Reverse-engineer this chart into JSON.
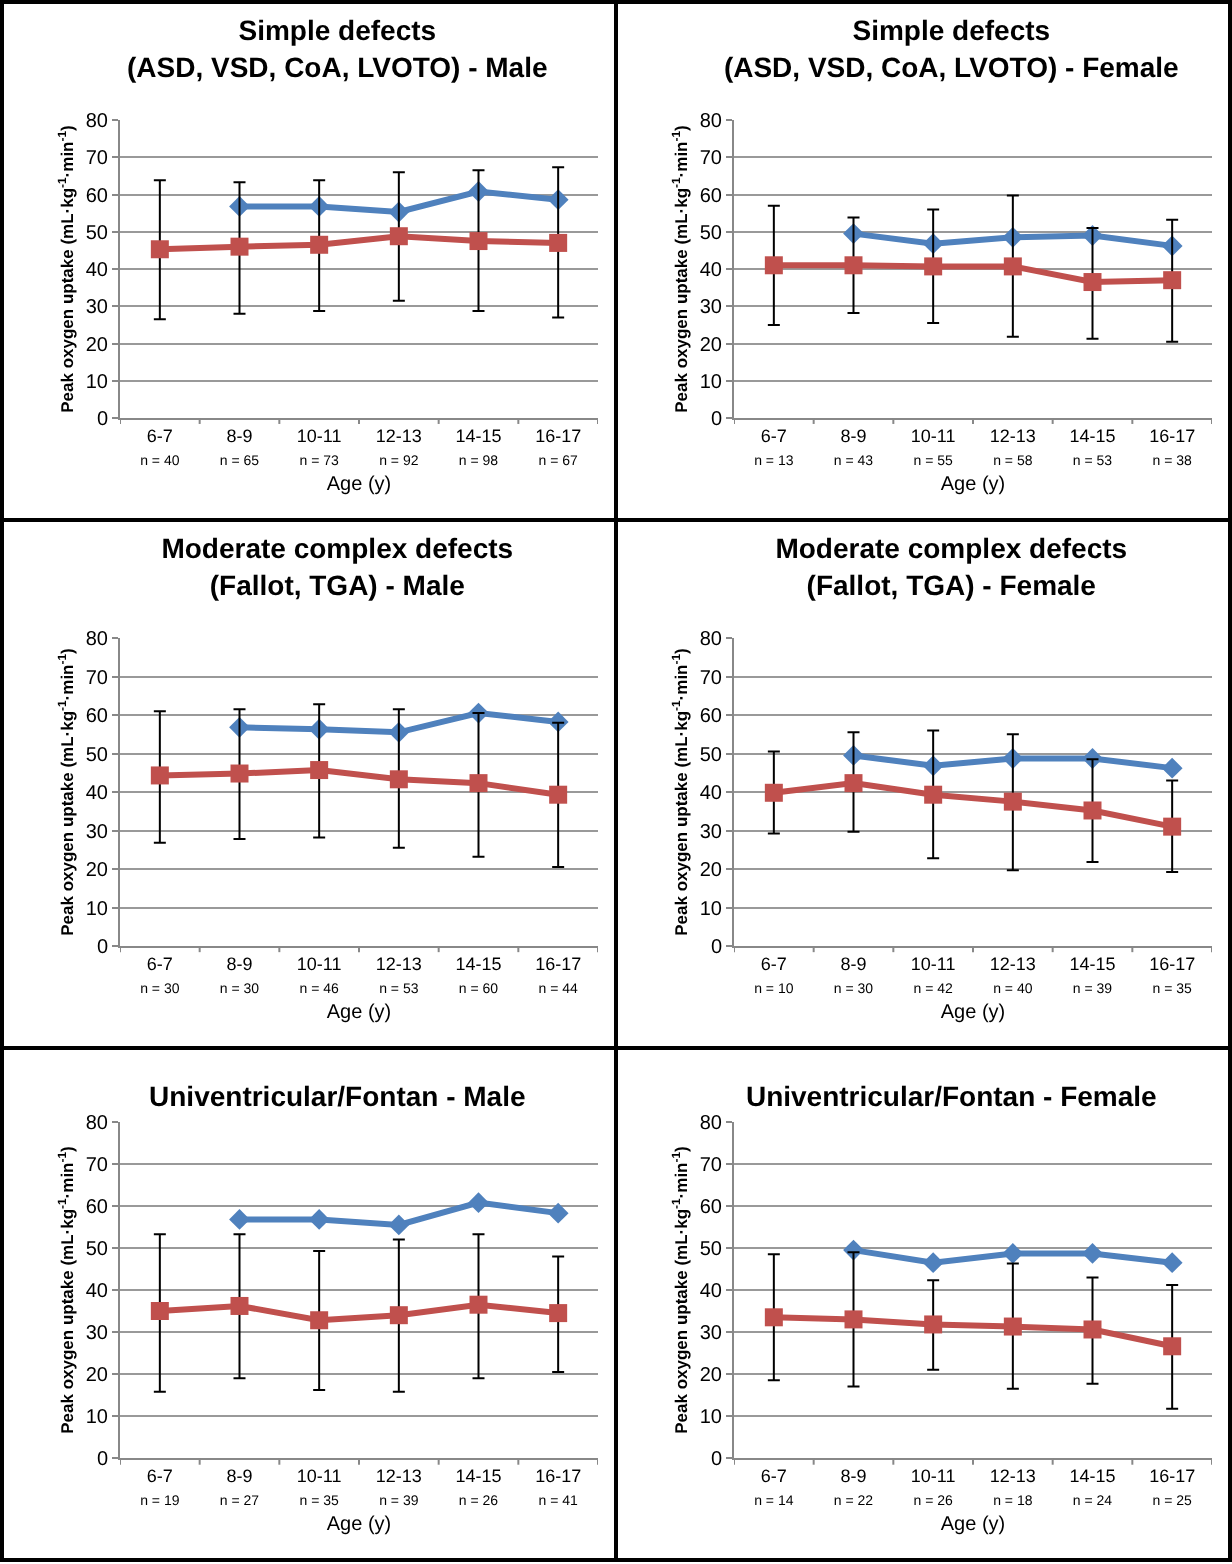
{
  "chart_data": [
    {
      "type": "line",
      "title": "Simple defects\n(ASD, VSD, CoA, LVOTO) - Male",
      "xlabel": "Age (y)",
      "ylabel": "Peak oxygen uptake (mL·kg$^{-1}$·min$^{-1}$)",
      "categories": [
        "6-7\nn = 40",
        "8-9\nn = 65",
        "10-11\nn = 73",
        "12-13\nn = 92",
        "14-15\nn = 98",
        "16-17\nn = 67"
      ],
      "ylim": [
        0,
        80
      ],
      "yticks": [
        0,
        10,
        20,
        30,
        40,
        50,
        60,
        70,
        80
      ],
      "grid": "y",
      "series": [
        {
          "color": "#4f81bd",
          "marker": "diamond",
          "values": [
            null,
            56.8,
            56.8,
            55.3,
            60.8,
            58.6
          ]
        },
        {
          "color": "#c0504d",
          "marker": "square",
          "values": [
            45.3,
            46,
            46.5,
            48.8,
            47.5,
            47
          ],
          "errors": [
            [
              26.5,
              63.8
            ],
            [
              28,
              63.3
            ],
            [
              28.7,
              63.8
            ],
            [
              31.5,
              66
            ],
            [
              28.7,
              66.5
            ],
            [
              27,
              67.3
            ]
          ]
        }
      ]
    },
    {
      "type": "line",
      "title": "Simple defects\n(ASD, VSD, CoA, LVOTO) - Female",
      "xlabel": "Age (y)",
      "ylabel": "Peak oxygen uptake (mL·kg$^{-1}$·min$^{-1}$)",
      "categories": [
        "6-7\nn = 13",
        "8-9\nn = 43",
        "10-11\nn = 55",
        "12-13\nn = 58",
        "14-15\nn = 53",
        "16-17\nn = 38"
      ],
      "ylim": [
        0,
        80
      ],
      "yticks": [
        0,
        10,
        20,
        30,
        40,
        50,
        60,
        70,
        80
      ],
      "grid": "y",
      "series": [
        {
          "color": "#4f81bd",
          "marker": "diamond",
          "values": [
            null,
            49.5,
            46.8,
            48.5,
            49,
            46.2
          ]
        },
        {
          "color": "#c0504d",
          "marker": "square",
          "values": [
            41,
            41,
            40.7,
            40.7,
            36.5,
            37
          ],
          "errors": [
            [
              25,
              57
            ],
            [
              28.2,
              53.8
            ],
            [
              25.5,
              56
            ],
            [
              21.8,
              59.7
            ],
            [
              21.3,
              51
            ],
            [
              20.5,
              53.2
            ]
          ]
        }
      ]
    },
    {
      "type": "line",
      "title": "Moderate complex defects\n(Fallot, TGA) - Male",
      "xlabel": "Age (y)",
      "ylabel": "Peak oxygen uptake (mL·kg$^{-1}$·min$^{-1}$)",
      "categories": [
        "6-7\nn = 30",
        "8-9\nn = 30",
        "10-11\nn = 46",
        "12-13\nn = 53",
        "14-15\nn = 60",
        "16-17\nn = 44"
      ],
      "ylim": [
        0,
        80
      ],
      "yticks": [
        0,
        10,
        20,
        30,
        40,
        50,
        60,
        70,
        80
      ],
      "grid": "y",
      "series": [
        {
          "color": "#4f81bd",
          "marker": "diamond",
          "values": [
            null,
            56.8,
            56.3,
            55.5,
            60.5,
            58.2
          ]
        },
        {
          "color": "#c0504d",
          "marker": "square",
          "values": [
            44.3,
            44.8,
            45.7,
            43.3,
            42.3,
            39.3
          ],
          "errors": [
            [
              26.8,
              61
            ],
            [
              27.8,
              61.5
            ],
            [
              28.2,
              62.8
            ],
            [
              25.5,
              61.5
            ],
            [
              23.2,
              60.5
            ],
            [
              20.5,
              58
            ]
          ]
        }
      ]
    },
    {
      "type": "line",
      "title": "Moderate complex defects\n(Fallot, TGA) - Female",
      "xlabel": "Age (y)",
      "ylabel": "Peak oxygen uptake (mL·kg$^{-1}$·min$^{-1}$)",
      "categories": [
        "6-7\nn = 10",
        "8-9\nn = 30",
        "10-11\nn = 42",
        "12-13\nn = 40",
        "14-15\nn = 39",
        "16-17\nn = 35"
      ],
      "ylim": [
        0,
        80
      ],
      "yticks": [
        0,
        10,
        20,
        30,
        40,
        50,
        60,
        70,
        80
      ],
      "grid": "y",
      "series": [
        {
          "color": "#4f81bd",
          "marker": "diamond",
          "values": [
            null,
            49.5,
            46.8,
            48.7,
            48.7,
            46.2
          ]
        },
        {
          "color": "#c0504d",
          "marker": "square",
          "values": [
            39.8,
            42.3,
            39.3,
            37.5,
            35.2,
            31
          ],
          "errors": [
            [
              29.2,
              50.5
            ],
            [
              29.7,
              55.5
            ],
            [
              22.8,
              56
            ],
            [
              19.7,
              55
            ],
            [
              21.8,
              48.5
            ],
            [
              19.2,
              43
            ]
          ]
        }
      ]
    },
    {
      "type": "line",
      "title": "Univentricular/Fontan - Male",
      "xlabel": "Age (y)",
      "ylabel": "Peak oxygen uptake (mL·kg$^{-1}$·min$^{-1}$)",
      "categories": [
        "6-7\nn = 19",
        "8-9\nn = 27",
        "10-11\nn = 35",
        "12-13\nn = 39",
        "14-15\nn = 26",
        "16-17\nn = 41"
      ],
      "ylim": [
        0,
        80
      ],
      "yticks": [
        0,
        10,
        20,
        30,
        40,
        50,
        60,
        70,
        80
      ],
      "grid": "y",
      "series": [
        {
          "color": "#4f81bd",
          "marker": "diamond",
          "values": [
            null,
            56.8,
            56.8,
            55.5,
            60.8,
            58.3
          ]
        },
        {
          "color": "#c0504d",
          "marker": "square",
          "values": [
            35,
            36.2,
            32.8,
            34,
            36.5,
            34.5
          ],
          "errors": [
            [
              15.8,
              53.3
            ],
            [
              19,
              53.3
            ],
            [
              16.2,
              49.3
            ],
            [
              15.8,
              52
            ],
            [
              19,
              53.3
            ],
            [
              20.5,
              48
            ]
          ]
        }
      ]
    },
    {
      "type": "line",
      "title": "Univentricular/Fontan - Female",
      "xlabel": "Age (y)",
      "ylabel": "Peak oxygen uptake (mL·kg$^{-1}$·min$^{-1}$)",
      "categories": [
        "6-7\nn = 14",
        "8-9\nn = 22",
        "10-11\nn = 26",
        "12-13\nn = 18",
        "14-15\nn = 24",
        "16-17\nn = 25"
      ],
      "ylim": [
        0,
        80
      ],
      "yticks": [
        0,
        10,
        20,
        30,
        40,
        50,
        60,
        70,
        80
      ],
      "grid": "y",
      "series": [
        {
          "color": "#4f81bd",
          "marker": "diamond",
          "values": [
            null,
            49.5,
            46.5,
            48.7,
            48.7,
            46.5
          ]
        },
        {
          "color": "#c0504d",
          "marker": "square",
          "values": [
            33.5,
            33,
            31.8,
            31.3,
            30.6,
            26.6
          ],
          "errors": [
            [
              18.5,
              48.5
            ],
            [
              17,
              49
            ],
            [
              21,
              42.3
            ],
            [
              16.5,
              46.3
            ],
            [
              17.7,
              43
            ],
            [
              11.7,
              41.2
            ]
          ]
        }
      ]
    }
  ]
}
